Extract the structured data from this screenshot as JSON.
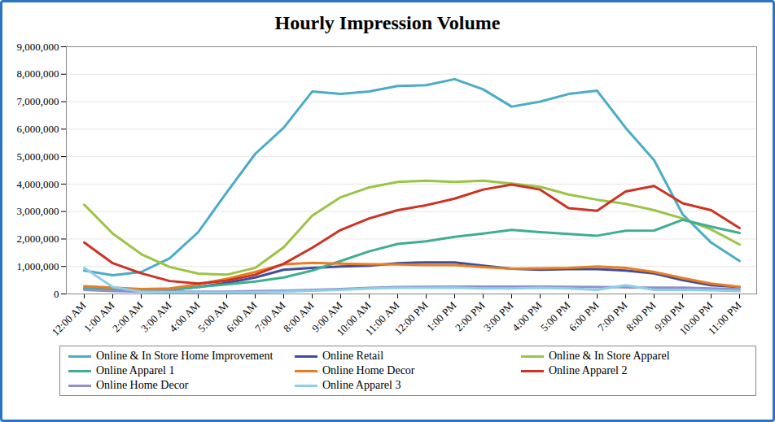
{
  "chart_data": {
    "type": "line",
    "title": "Hourly Impression Volume",
    "categories": [
      "12:00 AM",
      "1:00 AM",
      "2:00 AM",
      "3:00 AM",
      "4:00 AM",
      "5:00 AM",
      "6:00 AM",
      "7:00 AM",
      "8:00 AM",
      "9:00 AM",
      "10:00 AM",
      "11:00 AM",
      "12:00 PM",
      "1:00 PM",
      "2:00 PM",
      "3:00 PM",
      "4:00 PM",
      "5:00 PM",
      "6:00 PM",
      "7:00 PM",
      "8:00 PM",
      "9:00 PM",
      "10:00 PM",
      "11:00 PM"
    ],
    "series": [
      {
        "name": "Online & In Store Home Improvement",
        "color": "#4bacc6",
        "values": [
          850000,
          680000,
          800000,
          1300000,
          2250000,
          3700000,
          5100000,
          6050000,
          7370000,
          7280000,
          7370000,
          7570000,
          7600000,
          7820000,
          7450000,
          6820000,
          7000000,
          7280000,
          7400000,
          6050000,
          4870000,
          2900000,
          1870000,
          1200000
        ]
      },
      {
        "name": "Online Retail",
        "color": "#3f4d9c",
        "values": [
          200000,
          150000,
          120000,
          150000,
          250000,
          400000,
          600000,
          880000,
          950000,
          1000000,
          1030000,
          1120000,
          1150000,
          1150000,
          1030000,
          920000,
          880000,
          900000,
          900000,
          850000,
          750000,
          500000,
          320000,
          250000
        ]
      },
      {
        "name": "Online & In Store Apparel",
        "color": "#9bc445",
        "values": [
          3250000,
          2200000,
          1450000,
          980000,
          740000,
          700000,
          950000,
          1700000,
          2850000,
          3520000,
          3880000,
          4080000,
          4120000,
          4080000,
          4120000,
          4020000,
          3900000,
          3620000,
          3430000,
          3280000,
          3050000,
          2750000,
          2350000,
          1800000
        ]
      },
      {
        "name": "Online Apparel 1",
        "color": "#3fae92",
        "values": [
          200000,
          150000,
          120000,
          150000,
          250000,
          350000,
          450000,
          600000,
          850000,
          1200000,
          1550000,
          1820000,
          1920000,
          2080000,
          2200000,
          2330000,
          2250000,
          2180000,
          2120000,
          2300000,
          2310000,
          2700000,
          2450000,
          2220000
        ]
      },
      {
        "name": "Online Home Decor",
        "color": "#e87e24",
        "values": [
          280000,
          230000,
          180000,
          200000,
          350000,
          550000,
          800000,
          1080000,
          1130000,
          1100000,
          1080000,
          1070000,
          1050000,
          1050000,
          980000,
          920000,
          930000,
          950000,
          1000000,
          950000,
          800000,
          580000,
          380000,
          260000
        ]
      },
      {
        "name": "Online Apparel 2",
        "color": "#cc3322",
        "values": [
          1870000,
          1120000,
          750000,
          470000,
          380000,
          480000,
          700000,
          1100000,
          1680000,
          2330000,
          2750000,
          3050000,
          3230000,
          3470000,
          3800000,
          3980000,
          3800000,
          3120000,
          3030000,
          3730000,
          3930000,
          3300000,
          3050000,
          2400000
        ]
      },
      {
        "name": "Online Home Decor",
        "color": "#8e91cf",
        "values": [
          150000,
          100000,
          80000,
          80000,
          80000,
          80000,
          100000,
          120000,
          150000,
          180000,
          220000,
          250000,
          260000,
          270000,
          270000,
          270000,
          270000,
          260000,
          250000,
          240000,
          230000,
          230000,
          200000,
          170000
        ]
      },
      {
        "name": "Online Apparel 3",
        "color": "#8dcfe8",
        "values": [
          950000,
          250000,
          80000,
          60000,
          50000,
          50000,
          60000,
          80000,
          120000,
          150000,
          200000,
          220000,
          220000,
          230000,
          200000,
          200000,
          220000,
          200000,
          150000,
          320000,
          150000,
          150000,
          130000,
          100000
        ]
      }
    ],
    "ylim": [
      0,
      9000000
    ],
    "yticks": [
      0,
      {
        "value": 1000000,
        "label": "1,000,000"
      },
      {
        "value": 2000000,
        "label": "2,000,000"
      },
      {
        "value": 3000000,
        "label": "3,000,000"
      },
      {
        "value": 4000000,
        "label": "4,000,000"
      },
      {
        "value": 5000000,
        "label": "5,000,000"
      },
      {
        "value": 6000000,
        "label": "6,000,000"
      },
      {
        "value": 7000000,
        "label": "7,000,000"
      },
      {
        "value": 8000000,
        "label": "8,000,000"
      },
      {
        "value": 9000000,
        "label": "9,000,000"
      }
    ],
    "grid": true,
    "legend": "bottom"
  }
}
